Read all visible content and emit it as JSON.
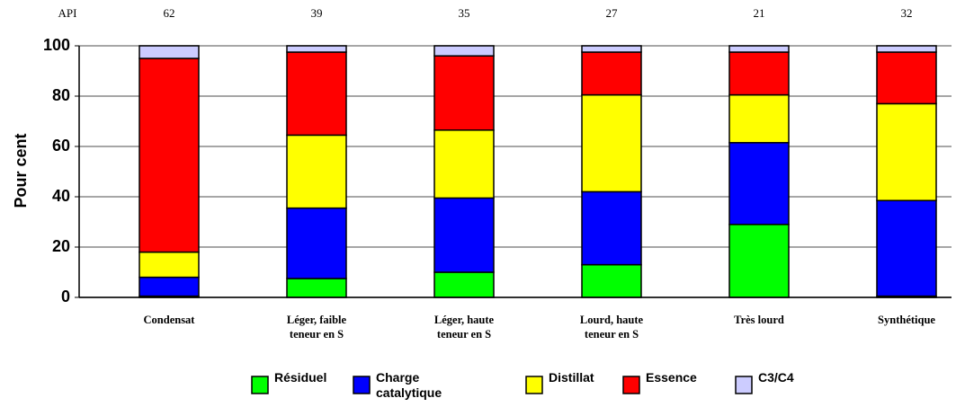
{
  "chart_data": {
    "type": "stacked_bar",
    "y_axis_label": "Pour cent",
    "api_label": "API",
    "api_values": [
      "62",
      "39",
      "35",
      "27",
      "21",
      "32"
    ],
    "categories": [
      "Condensat",
      "Léger, faible teneur en S",
      "Léger, haute teneur en S",
      "Lourd, haute teneur en S",
      "Très lourd",
      "Synthétique"
    ],
    "series": [
      {
        "name": "Résiduel",
        "color": "#00ff00",
        "values": [
          0.5,
          7.5,
          10,
          13,
          29,
          0.5
        ]
      },
      {
        "name": "Charge catalytique",
        "color": "#0000ff",
        "values": [
          7.5,
          28,
          29.5,
          29,
          32.5,
          38
        ]
      },
      {
        "name": "Distillat",
        "color": "#ffff00",
        "values": [
          10,
          29,
          27,
          38.5,
          19,
          38.5
        ]
      },
      {
        "name": "Essence",
        "color": "#ff0000",
        "values": [
          77,
          33,
          29.5,
          17,
          17,
          20.5
        ]
      },
      {
        "name": "C3/C4",
        "color": "#ccccff",
        "values": [
          5,
          2.5,
          4,
          2.5,
          2.5,
          2.5
        ]
      }
    ],
    "ylim": [
      0,
      100
    ],
    "yticks": [
      0,
      20,
      40,
      60,
      80,
      100
    ],
    "grid": true
  }
}
